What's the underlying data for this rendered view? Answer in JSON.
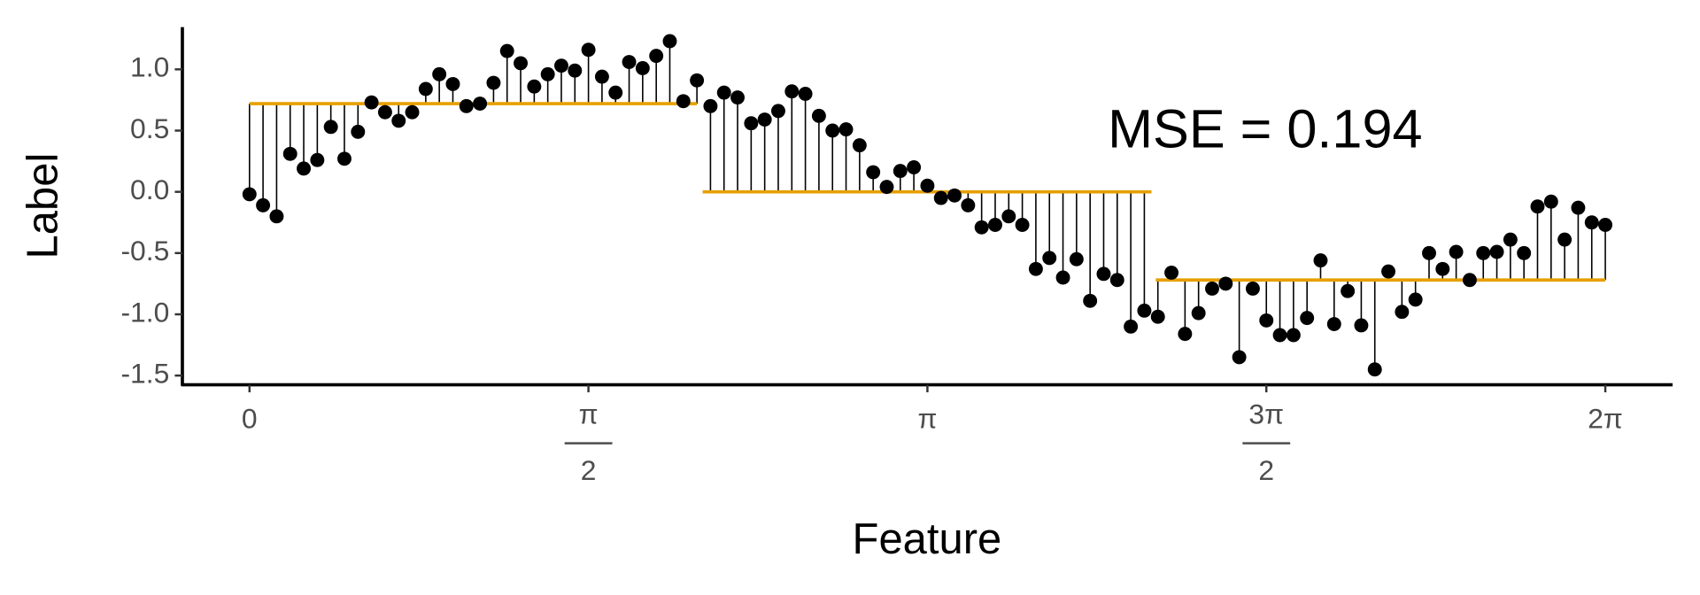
{
  "chart_data": {
    "type": "scatter",
    "x_label": "Feature",
    "y_label": "Label",
    "annotation": "MSE = 0.194",
    "xlim": [
      -0.311,
      6.595
    ],
    "ylim": [
      -1.575,
      1.345
    ],
    "xticks": [
      0,
      {
        "value": 1.5708,
        "label": "π",
        "denominator": "2"
      },
      {
        "value": 3.1416,
        "label": "π"
      },
      {
        "value": 4.7124,
        "label": "3π",
        "denominator": "2"
      },
      {
        "value": 6.2832,
        "label": "2π"
      }
    ],
    "yticks": [
      -1.5,
      {
        "value": -1,
        "label": "-1.0"
      },
      -0.5,
      {
        "value": 0,
        "label": "0.0"
      },
      0.5,
      {
        "value": 1,
        "label": "1.0"
      }
    ],
    "color": "#000000",
    "step_color": "#E69F00",
    "x": [
      0,
      0.0628,
      0.1257,
      0.1885,
      0.2513,
      0.3142,
      0.377,
      0.4398,
      0.5027,
      0.5655,
      0.6283,
      0.6912,
      0.754,
      0.8168,
      0.8796,
      0.9425,
      1.0053,
      1.0681,
      1.131,
      1.1938,
      1.2566,
      1.3195,
      1.3823,
      1.4451,
      1.508,
      1.5708,
      1.6336,
      1.6965,
      1.7593,
      1.8221,
      1.885,
      1.9478,
      2.0106,
      2.0735,
      2.1363,
      2.1991,
      2.2619,
      2.3248,
      2.3876,
      2.4504,
      2.5133,
      2.5761,
      2.6389,
      2.7018,
      2.7646,
      2.8274,
      2.8903,
      2.9531,
      3.0159,
      3.0788,
      3.1416,
      3.2044,
      3.2673,
      3.3301,
      3.3929,
      3.4558,
      3.5186,
      3.5814,
      3.6442,
      3.7071,
      3.7699,
      3.8327,
      3.8956,
      3.9584,
      4.0212,
      4.0841,
      4.1469,
      4.2097,
      4.2726,
      4.3354,
      4.3982,
      4.4611,
      4.5239,
      4.5867,
      4.6496,
      4.7124,
      4.7752,
      4.8381,
      4.9009,
      4.9637,
      5.0265,
      5.0894,
      5.1522,
      5.215,
      5.2779,
      5.3407,
      5.4035,
      5.4664,
      5.5292,
      5.592,
      5.6549,
      5.7177,
      5.7805,
      5.8434,
      5.9062,
      5.969,
      6.0319,
      6.0947,
      6.1575,
      6.2204,
      6.2832
    ],
    "values": [
      -0.02,
      -0.11,
      -0.2,
      0.31,
      0.19,
      0.26,
      0.53,
      0.27,
      0.49,
      0.73,
      0.65,
      0.58,
      0.65,
      0.84,
      0.96,
      0.88,
      0.7,
      0.72,
      0.89,
      1.15,
      1.05,
      0.86,
      0.96,
      1.03,
      0.99,
      1.16,
      0.94,
      0.81,
      1.06,
      1.01,
      1.11,
      1.23,
      0.74,
      0.91,
      0.7,
      0.81,
      0.77,
      0.56,
      0.59,
      0.66,
      0.82,
      0.8,
      0.62,
      0.5,
      0.51,
      0.38,
      0.16,
      0.04,
      0.17,
      0.2,
      0.05,
      -0.05,
      -0.03,
      -0.11,
      -0.29,
      -0.27,
      -0.2,
      -0.27,
      -0.63,
      -0.54,
      -0.7,
      -0.55,
      -0.89,
      -0.67,
      -0.72,
      -1.1,
      -0.97,
      -1.02,
      -0.66,
      -1.16,
      -0.99,
      -0.79,
      -0.75,
      -1.35,
      -0.79,
      -1.05,
      -1.17,
      -1.17,
      -1.03,
      -0.56,
      -1.08,
      -0.81,
      -1.09,
      -1.45,
      -0.65,
      -0.98,
      -0.88,
      -0.5,
      -0.63,
      -0.49,
      -0.72,
      -0.5,
      -0.49,
      -0.39,
      -0.5,
      -0.12,
      -0.08,
      -0.39,
      -0.13,
      -0.25,
      -0.27
    ],
    "steps": [
      {
        "x0": 0,
        "x1": 2.0735,
        "value": 0.72
      },
      {
        "x0": 2.1,
        "x1": 4.18,
        "value": 0
      },
      {
        "x0": 4.2,
        "x1": 6.2832,
        "value": -0.72
      }
    ]
  }
}
